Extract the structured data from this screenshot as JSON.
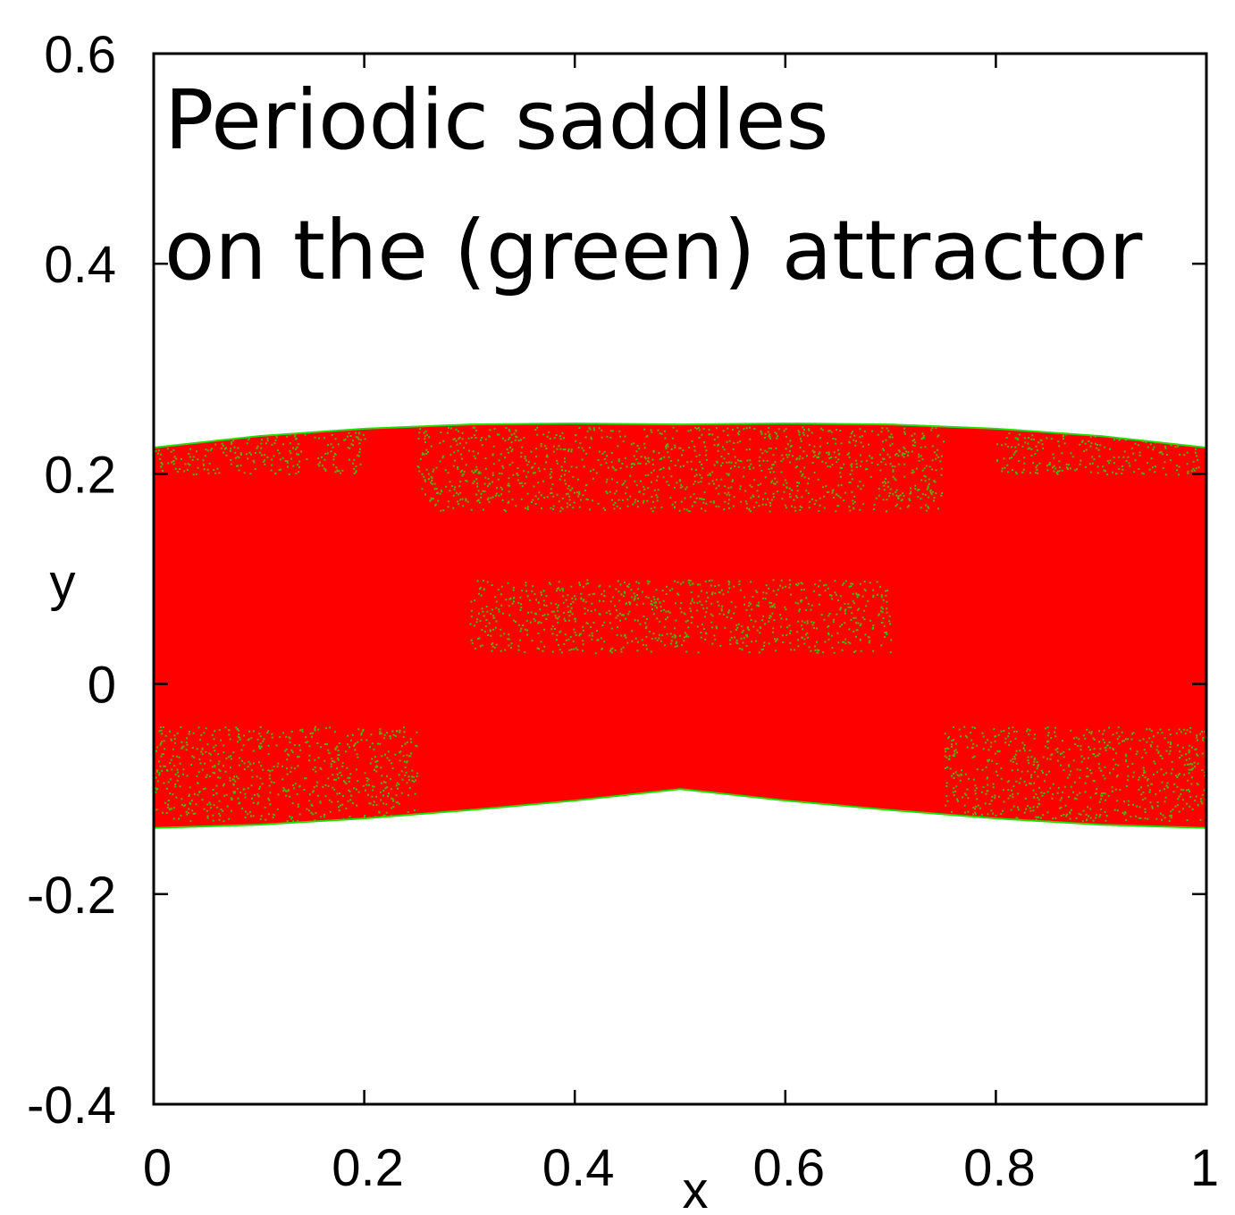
{
  "chart_data": {
    "type": "scatter",
    "title_lines": [
      "Periodic saddles",
      "on the (green) attractor"
    ],
    "xlabel": "x",
    "ylabel": "y",
    "xlim": [
      0,
      1
    ],
    "ylim": [
      -0.4,
      0.6
    ],
    "xticks": [
      0,
      0.2,
      0.4,
      0.6,
      0.8,
      1
    ],
    "xtick_labels": [
      "0",
      "0.2",
      "0.4",
      "0.6",
      "0.8",
      "1"
    ],
    "yticks": [
      -0.4,
      -0.2,
      0,
      0.2,
      0.4,
      0.6
    ],
    "ytick_labels": [
      "-0.4",
      "-0.2",
      "0",
      "0.2",
      "0.4",
      "0.6"
    ],
    "grid": false,
    "legend": "none",
    "colors": {
      "saddles": "#ff0000",
      "attractor": "#22dd00",
      "frame": "#000000"
    },
    "attractor_boundary": {
      "x": [
        0,
        0.1,
        0.2,
        0.3,
        0.4,
        0.5,
        0.6,
        0.7,
        0.8,
        0.9,
        1
      ],
      "upper": [
        0.225,
        0.236,
        0.243,
        0.247,
        0.248,
        0.247,
        0.248,
        0.247,
        0.243,
        0.236,
        0.225
      ],
      "lower": [
        -0.137,
        -0.134,
        -0.128,
        -0.12,
        -0.111,
        -0.1,
        -0.111,
        -0.12,
        -0.128,
        -0.134,
        -0.137
      ]
    },
    "green_regions": [
      {
        "x": [
          0.25,
          0.75
        ],
        "y": [
          0.165,
          0.245
        ]
      },
      {
        "x": [
          0.0,
          0.2
        ],
        "y": [
          0.2,
          0.24
        ]
      },
      {
        "x": [
          0.8,
          1.0
        ],
        "y": [
          0.2,
          0.24
        ]
      },
      {
        "x": [
          0.0,
          0.25
        ],
        "y": [
          -0.13,
          -0.04
        ]
      },
      {
        "x": [
          0.75,
          1.0
        ],
        "y": [
          -0.13,
          -0.04
        ]
      },
      {
        "x": [
          0.3,
          0.7
        ],
        "y": [
          0.03,
          0.1
        ]
      }
    ]
  }
}
